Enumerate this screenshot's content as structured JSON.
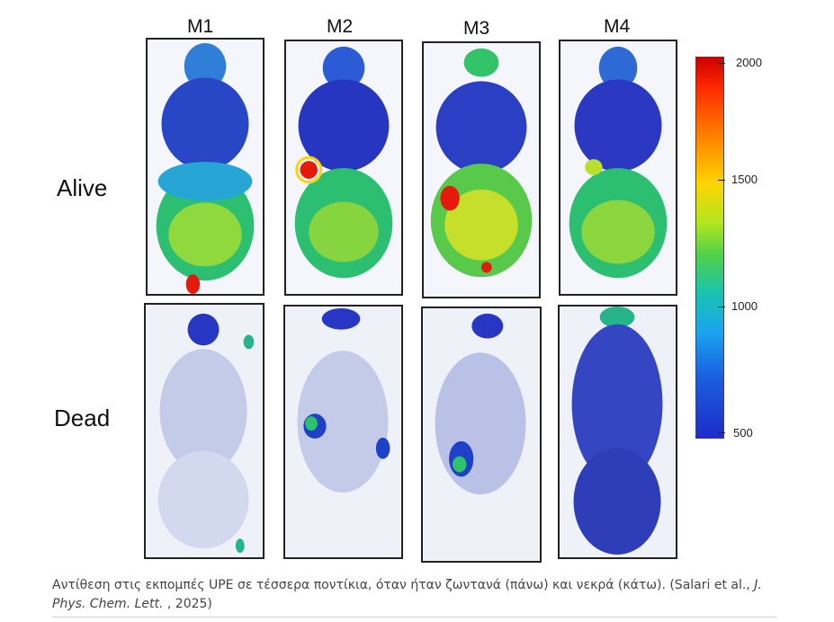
{
  "figure": {
    "columns": [
      "M1",
      "M2",
      "M3",
      "M4"
    ],
    "rows": [
      "Alive",
      "Dead"
    ],
    "colorbar": {
      "ticks": [
        "2000",
        "1500",
        "1000",
        "500"
      ],
      "colors_top_to_bottom": [
        "#cc0000",
        "#ff8a00",
        "#ffd400",
        "#4fd14a",
        "#1aa5ef",
        "#1f2cc8"
      ]
    }
  },
  "caption": {
    "text_before": "Αντίθεση στις εκπομπές UPE σε τέσσερα ποντίκια, όταν ήταν ζωντανά (πάνω) και νεκρά (κάτω). (Salari et al., ",
    "journal": "J. Phys. Chem. Lett.",
    "text_after": " , 2025)"
  }
}
